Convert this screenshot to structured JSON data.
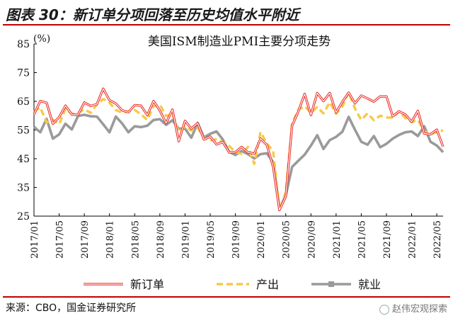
{
  "header": {
    "title": "图表 30：新订单分项回落至历史均值水平附近"
  },
  "source": "来源：CBO，国金证券研究所",
  "watermark": "赵伟宏观探索",
  "colors": {
    "accent": "#c00000",
    "new_orders": "#e8231e",
    "production": "#f7c948",
    "employment": "#9a9a9a"
  },
  "chart_data": {
    "type": "line",
    "title": "美国ISM制造业PMI主要分项走势",
    "ylabel": "(%)",
    "xlabel": "",
    "ylim": [
      25,
      85
    ],
    "yticks": [
      25,
      35,
      45,
      55,
      65,
      75,
      85
    ],
    "grid": false,
    "legend_position": "bottom",
    "x_tick_labels": [
      "2017/01",
      "2017/05",
      "2017/09",
      "2018/01",
      "2018/05",
      "2018/09",
      "2019/01",
      "2019/05",
      "2019/09",
      "2020/01",
      "2020/05",
      "2020/09",
      "2021/01",
      "2021/05",
      "2021/09",
      "2022/01",
      "2022/05"
    ],
    "x": [
      "2017/01",
      "2017/02",
      "2017/03",
      "2017/04",
      "2017/05",
      "2017/06",
      "2017/07",
      "2017/08",
      "2017/09",
      "2017/10",
      "2017/11",
      "2017/12",
      "2018/01",
      "2018/02",
      "2018/03",
      "2018/04",
      "2018/05",
      "2018/06",
      "2018/07",
      "2018/08",
      "2018/09",
      "2018/10",
      "2018/11",
      "2018/12",
      "2019/01",
      "2019/02",
      "2019/03",
      "2019/04",
      "2019/05",
      "2019/06",
      "2019/07",
      "2019/08",
      "2019/09",
      "2019/10",
      "2019/11",
      "2019/12",
      "2020/01",
      "2020/02",
      "2020/03",
      "2020/04",
      "2020/05",
      "2020/06",
      "2020/07",
      "2020/08",
      "2020/09",
      "2020/10",
      "2020/11",
      "2020/12",
      "2021/01",
      "2021/02",
      "2021/03",
      "2021/04",
      "2021/05",
      "2021/06",
      "2021/07",
      "2021/08",
      "2021/09",
      "2021/10",
      "2021/11",
      "2021/12",
      "2022/01",
      "2022/02",
      "2022/03",
      "2022/04",
      "2022/05",
      "2022/06"
    ],
    "series": [
      {
        "name": "新订单",
        "key": "new_orders",
        "values": [
          60.4,
          65.1,
          64.5,
          57.2,
          59.5,
          63.5,
          60.4,
          60.3,
          64.6,
          63.4,
          64.0,
          69.4,
          65.4,
          64.2,
          61.9,
          61.2,
          63.7,
          63.5,
          60.2,
          65.1,
          61.8,
          57.4,
          62.1,
          51.1,
          58.2,
          55.5,
          57.4,
          51.7,
          52.7,
          50.0,
          50.8,
          47.2,
          47.3,
          49.1,
          47.2,
          46.8,
          52.0,
          49.8,
          42.2,
          27.1,
          31.8,
          56.4,
          61.5,
          67.6,
          60.2,
          67.9,
          65.1,
          67.9,
          61.1,
          64.8,
          68.0,
          64.3,
          67.0,
          66.0,
          64.9,
          66.7,
          66.7,
          59.8,
          61.5,
          60.4,
          57.9,
          61.7,
          53.8,
          53.5,
          55.1,
          49.2
        ]
      },
      {
        "name": "产出",
        "key": "production",
        "values": [
          61.4,
          62.9,
          57.6,
          58.6,
          57.1,
          62.4,
          60.6,
          61.0,
          62.2,
          61.0,
          63.9,
          65.8,
          64.5,
          62.0,
          61.0,
          61.5,
          62.0,
          60.5,
          58.5,
          63.3,
          63.9,
          59.9,
          60.6,
          54.3,
          56.2,
          54.8,
          55.8,
          52.3,
          51.3,
          51.8,
          50.8,
          49.5,
          47.3,
          46.7,
          49.1,
          43.2,
          54.3,
          50.3,
          47.7,
          27.5,
          33.2,
          57.3,
          62.1,
          63.3,
          61.0,
          63.0,
          60.8,
          64.7,
          60.7,
          63.2,
          68.1,
          62.5,
          58.5,
          60.8,
          58.4,
          60.0,
          59.4,
          59.3,
          61.5,
          59.2,
          57.8,
          58.5,
          54.5,
          53.6,
          54.2,
          54.9
        ]
      },
      {
        "name": "就业",
        "key": "employment",
        "values": [
          56.1,
          54.2,
          58.9,
          52.0,
          53.5,
          57.2,
          55.2,
          59.9,
          60.3,
          59.8,
          59.7,
          57.0,
          54.2,
          59.7,
          57.3,
          54.2,
          56.3,
          56.0,
          56.5,
          58.5,
          58.8,
          56.8,
          58.4,
          55.5,
          55.5,
          52.3,
          57.5,
          52.4,
          53.7,
          54.5,
          51.7,
          47.4,
          46.3,
          47.7,
          46.6,
          45.1,
          46.6,
          46.9,
          43.8,
          27.5,
          32.1,
          42.1,
          44.3,
          46.4,
          49.6,
          53.2,
          48.4,
          51.5,
          52.6,
          54.4,
          59.6,
          55.1,
          50.9,
          49.9,
          52.9,
          49.0,
          50.2,
          52.0,
          53.3,
          54.2,
          54.5,
          52.9,
          56.3,
          50.9,
          49.6,
          47.3
        ]
      }
    ]
  }
}
